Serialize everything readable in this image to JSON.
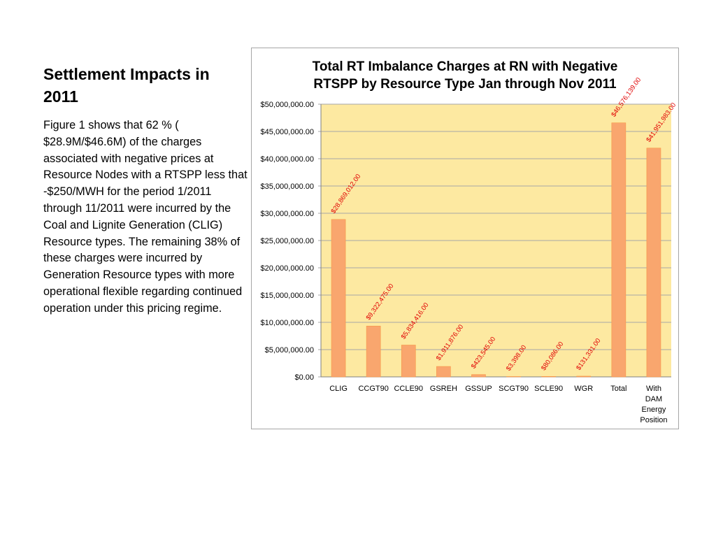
{
  "slide": {
    "title": "Settlement Impacts in 2011",
    "body": "Figure 1 shows that 62 % ( $28.9M/$46.6M) of the charges associated with negative prices at Resource Nodes with a RTSPP less that -$250/MWH for the period 1/2011 through 11/2011 were incurred by the Coal and Lignite Generation (CLIG) Resource types. The remaining 38% of these charges were incurred by Generation Resource types with more operational flexible regarding continued operation under this pricing regime."
  },
  "chart_data": {
    "type": "bar",
    "title": "Total RT Imbalance Charges at RN with Negative RTSPP by Resource Type Jan through Nov 2011",
    "categories": [
      "CLIG",
      "CCGT90",
      "CCLE90",
      "GSREH",
      "GSSUP",
      "SCGT90",
      "SCLE90",
      "WGR",
      "Total",
      "With DAM Energy Position"
    ],
    "values": [
      28869012.0,
      9322475.0,
      5834416.0,
      1911876.0,
      423545.0,
      3398.0,
      80086.0,
      131331.0,
      46576139.0,
      41951983.0
    ],
    "data_labels": [
      "$28,869,012.00",
      "$9,322,475.00",
      "$5,834,416.00",
      "$1,911,876.00",
      "$423,545.00",
      "$3,398.00",
      "$80,086.00",
      "$131,331.00",
      "$46,576,139.00",
      "$41,951,983.00"
    ],
    "ylim": [
      0,
      50000000
    ],
    "yticks": [
      0,
      5000000,
      10000000,
      15000000,
      20000000,
      25000000,
      30000000,
      35000000,
      40000000,
      45000000,
      50000000
    ],
    "ytick_labels": [
      "$0.00",
      "$5,000,000.00",
      "$10,000,000.00",
      "$15,000,000.00",
      "$20,000,000.00",
      "$25,000,000.00",
      "$30,000,000.00",
      "$35,000,000.00",
      "$40,000,000.00",
      "$45,000,000.00",
      "$50,000,000.00"
    ],
    "xlabel": "",
    "ylabel": "",
    "grid": true,
    "legend": "none",
    "colors": {
      "plot_background": "#fde9a1",
      "bar_fill": "#f9a66e",
      "bar_stroke": "#f79646",
      "data_label": "#e00000",
      "gridline": "#a6a6a6",
      "text": "#000000"
    }
  }
}
